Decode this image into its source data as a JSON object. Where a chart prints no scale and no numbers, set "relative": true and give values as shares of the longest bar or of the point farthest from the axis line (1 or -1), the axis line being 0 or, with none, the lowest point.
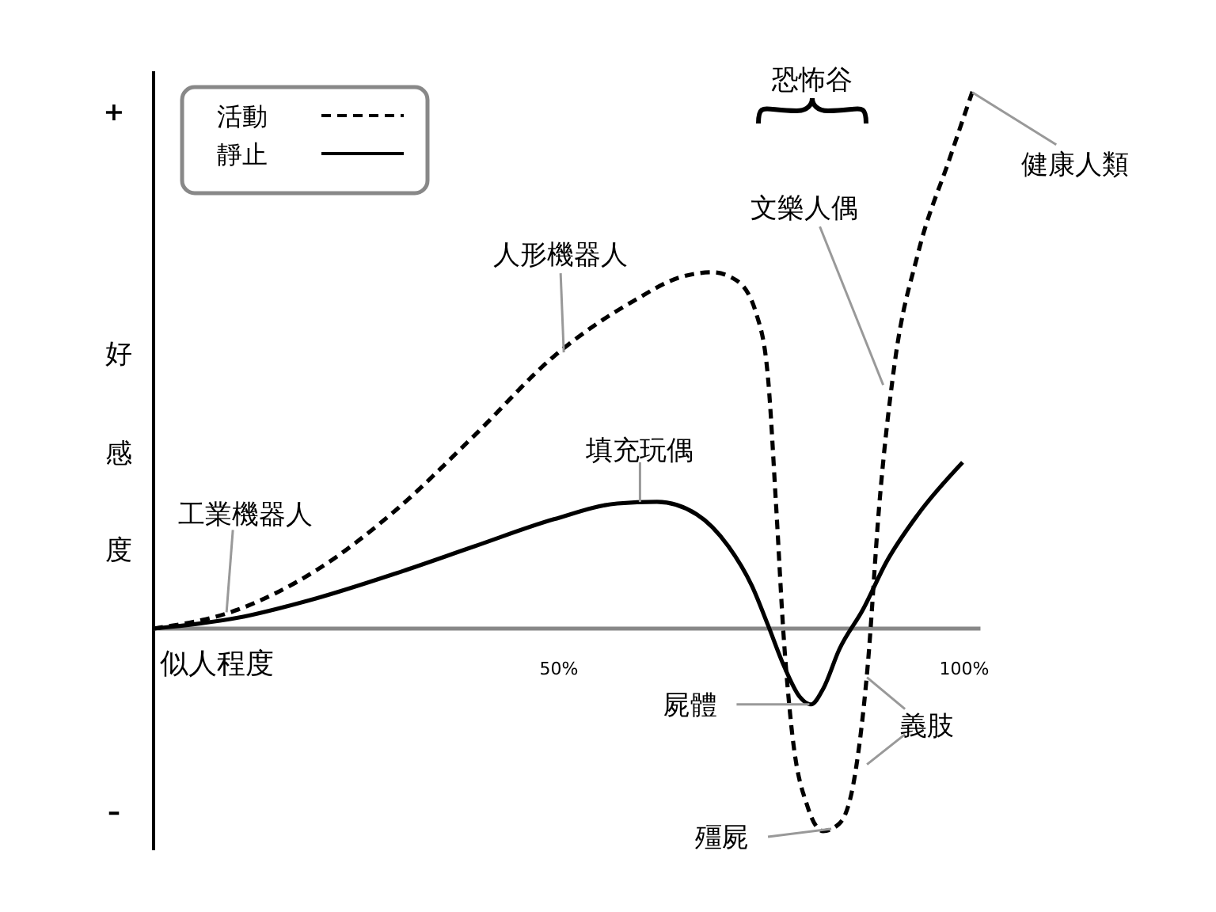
{
  "chart_data": {
    "type": "line",
    "relative": true,
    "xlabel": "似人程度",
    "ylabel": "好感度",
    "legend": "top left",
    "xlim": [
      0,
      102
    ],
    "xticks": [
      {
        "value": 50,
        "label": "50%"
      },
      {
        "value": 100,
        "label": "100%"
      }
    ],
    "series": [
      {
        "name": "活動",
        "color": "#000000",
        "line_style": "dashed",
        "x": [
          0,
          10.4,
          20.1,
          29.9,
          39.6,
          49.4,
          59.2,
          65.0,
          68.9,
          71.9,
          74.4,
          75.8,
          76.8,
          77.7,
          78.7,
          80.7,
          82.6,
          84.6,
          86.5,
          88.1,
          89.5,
          91.4,
          94.3,
          98.2,
          101.2
        ],
        "values": [
          0,
          0.035,
          0.108,
          0.219,
          0.357,
          0.503,
          0.605,
          0.649,
          0.658,
          0.643,
          0.579,
          0.462,
          0.225,
          -0.009,
          -0.184,
          -0.33,
          -0.374,
          -0.36,
          -0.272,
          -0.067,
          0.225,
          0.488,
          0.693,
          0.868,
          1
        ]
      },
      {
        "name": "靜止",
        "color": "#000000",
        "line_style": "solid",
        "x": [
          0,
          10.4,
          20.1,
          29.9,
          39.6,
          49.4,
          57.2,
          62.1,
          67.0,
          70.9,
          73.8,
          75.8,
          77.7,
          79.7,
          81.1,
          82.6,
          84.6,
          87.5,
          90.4,
          94.3,
          99.8
        ],
        "values": [
          0,
          0.02,
          0.056,
          0.102,
          0.152,
          0.202,
          0.231,
          0.234,
          0.211,
          0.152,
          0.079,
          0.006,
          -0.067,
          -0.126,
          -0.14,
          -0.111,
          -0.038,
          0.035,
          0.123,
          0.211,
          0.307
        ]
      }
    ],
    "annotations": [
      "+",
      "–",
      "恐怖谷",
      {
        "text": "工業機器人",
        "x": 9,
        "y": 0.03
      },
      {
        "text": "人形機器人",
        "x": 50.6,
        "y": 0.51
      },
      {
        "text": "填充玩偶",
        "x": 60,
        "y": 0.234
      },
      {
        "text": "文樂人偶",
        "x": 90,
        "y": 0.45
      },
      {
        "text": "健康人類",
        "x": 101,
        "y": 0.99
      },
      {
        "text": "屍體",
        "x": 80.9,
        "y": -0.14
      },
      {
        "text": "殭屍",
        "x": 83.6,
        "y": -0.37
      },
      {
        "text": "義肢",
        "x": 88,
        "y": -0.09
      }
    ]
  }
}
